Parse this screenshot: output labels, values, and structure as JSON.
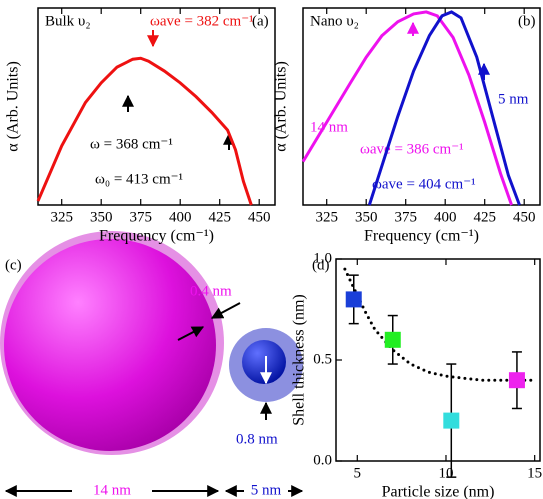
{
  "chart_data": [
    {
      "type": "line",
      "panel": "(a)",
      "title": "Bulk υ₂",
      "xlabel": "Frequency (cm⁻¹)",
      "ylabel": "α (Arb. Units)",
      "xlim": [
        310,
        460
      ],
      "xticks": [
        325,
        350,
        375,
        400,
        425,
        450
      ],
      "ylim": [
        0,
        1
      ],
      "series": [
        {
          "color": "#ee1111",
          "x": [
            310,
            325,
            340,
            350,
            360,
            370,
            375,
            380,
            390,
            400,
            410,
            420,
            430,
            435,
            440,
            445
          ],
          "values": [
            0.02,
            0.3,
            0.52,
            0.62,
            0.7,
            0.74,
            0.745,
            0.73,
            0.68,
            0.62,
            0.55,
            0.47,
            0.38,
            0.28,
            0.12,
            0.0
          ]
        }
      ],
      "annotations": [
        {
          "text": "ωave = 382 cm⁻¹",
          "color": "#ee1111"
        },
        {
          "text": "ω = 368 cm⁻¹",
          "color": "#000000"
        },
        {
          "text": "ω₀ = 413 cm⁻¹",
          "color": "#000000"
        }
      ]
    },
    {
      "type": "line",
      "panel": "(b)",
      "title": "Nano υ₂",
      "xlabel": "Frequency (cm⁻¹)",
      "ylabel": "α (Arb. Units)",
      "xlim": [
        310,
        460
      ],
      "xticks": [
        325,
        350,
        375,
        400,
        425,
        450
      ],
      "ylim": [
        0,
        1
      ],
      "series": [
        {
          "color": "#ee11ee",
          "x": [
            310,
            325,
            340,
            350,
            360,
            370,
            380,
            388,
            395,
            405,
            415,
            425,
            435,
            442
          ],
          "values": [
            0.22,
            0.42,
            0.62,
            0.75,
            0.86,
            0.93,
            0.97,
            0.98,
            0.96,
            0.85,
            0.66,
            0.42,
            0.16,
            0.0
          ]
        },
        {
          "color": "#1111cc",
          "x": [
            352,
            360,
            370,
            380,
            390,
            398,
            404,
            410,
            420,
            430,
            440,
            447
          ],
          "values": [
            0.0,
            0.2,
            0.45,
            0.68,
            0.86,
            0.96,
            0.98,
            0.95,
            0.75,
            0.45,
            0.15,
            0.0
          ]
        }
      ],
      "annotations": [
        {
          "text": "14 nm",
          "color": "#ee11ee"
        },
        {
          "text": "5 nm",
          "color": "#1111cc"
        },
        {
          "text": "ωave = 386 cm⁻¹",
          "color": "#ee11ee"
        },
        {
          "text": "ωave = 404 cm⁻¹",
          "color": "#1111cc"
        }
      ]
    },
    {
      "type": "scatter",
      "panel": "(d)",
      "xlabel": "Particle size (nm)",
      "ylabel": "Shell thickness (nm)",
      "xlim": [
        3.8,
        15.3
      ],
      "xticks": [
        5,
        10,
        15
      ],
      "ylim": [
        0,
        1
      ],
      "yticks": [
        {
          "value": 0,
          "label": "0.0"
        },
        {
          "value": 0.5,
          "label": "0.5"
        },
        {
          "value": 1,
          "label": "1.0"
        }
      ],
      "points": {
        "x": [
          4.8,
          7,
          10.3,
          14
        ],
        "values": [
          0.8,
          0.6,
          0.2,
          0.4
        ],
        "errors": [
          0.12,
          0.12,
          0.28,
          0.14
        ],
        "colors": [
          "#1a3fd8",
          "#22ee22",
          "#33dddd",
          "#ee22ee"
        ]
      },
      "fit": {
        "x": [
          4.3,
          5,
          5.5,
          6,
          7,
          8,
          9,
          10,
          11,
          12,
          13,
          14,
          15
        ],
        "values": [
          0.95,
          0.82,
          0.73,
          0.65,
          0.55,
          0.48,
          0.44,
          0.42,
          0.41,
          0.4,
          0.4,
          0.4,
          0.4
        ]
      }
    }
  ],
  "diagram": {
    "panel": "(c)",
    "shell_large": "0.4 nm",
    "shell_small": "0.8 nm",
    "size_large": "14 nm",
    "size_small": "5 nm"
  }
}
